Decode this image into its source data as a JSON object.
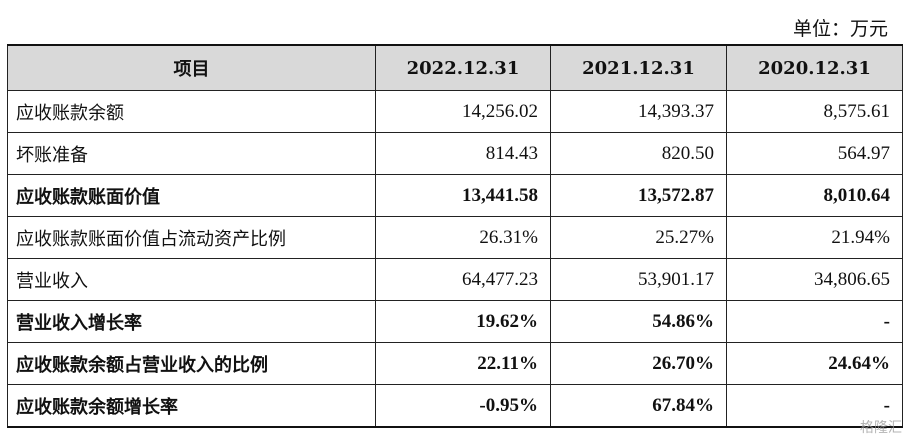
{
  "unit_label": "单位：万元",
  "table": {
    "headers": [
      "项目",
      "2022.12.31",
      "2021.12.31",
      "2020.12.31"
    ],
    "rows": [
      {
        "label": "应收账款余额",
        "values": [
          "14,256.02",
          "14,393.37",
          "8,575.61"
        ],
        "bold": false
      },
      {
        "label": "坏账准备",
        "values": [
          "814.43",
          "820.50",
          "564.97"
        ],
        "bold": false
      },
      {
        "label": "应收账款账面价值",
        "values": [
          "13,441.58",
          "13,572.87",
          "8,010.64"
        ],
        "bold": true
      },
      {
        "label": "应收账款账面价值占流动资产比例",
        "values": [
          "26.31%",
          "25.27%",
          "21.94%"
        ],
        "bold": false
      },
      {
        "label": "营业收入",
        "values": [
          "64,477.23",
          "53,901.17",
          "34,806.65"
        ],
        "bold": false
      },
      {
        "label": "营业收入增长率",
        "values": [
          "19.62%",
          "54.86%",
          "-"
        ],
        "bold": true
      },
      {
        "label": "应收账款余额占营业收入的比例",
        "values": [
          "22.11%",
          "26.70%",
          "24.64%"
        ],
        "bold": true
      },
      {
        "label": "应收账款余额增长率",
        "values": [
          "-0.95%",
          "67.84%",
          "-"
        ],
        "bold": true
      }
    ]
  },
  "watermark": "格隆汇"
}
